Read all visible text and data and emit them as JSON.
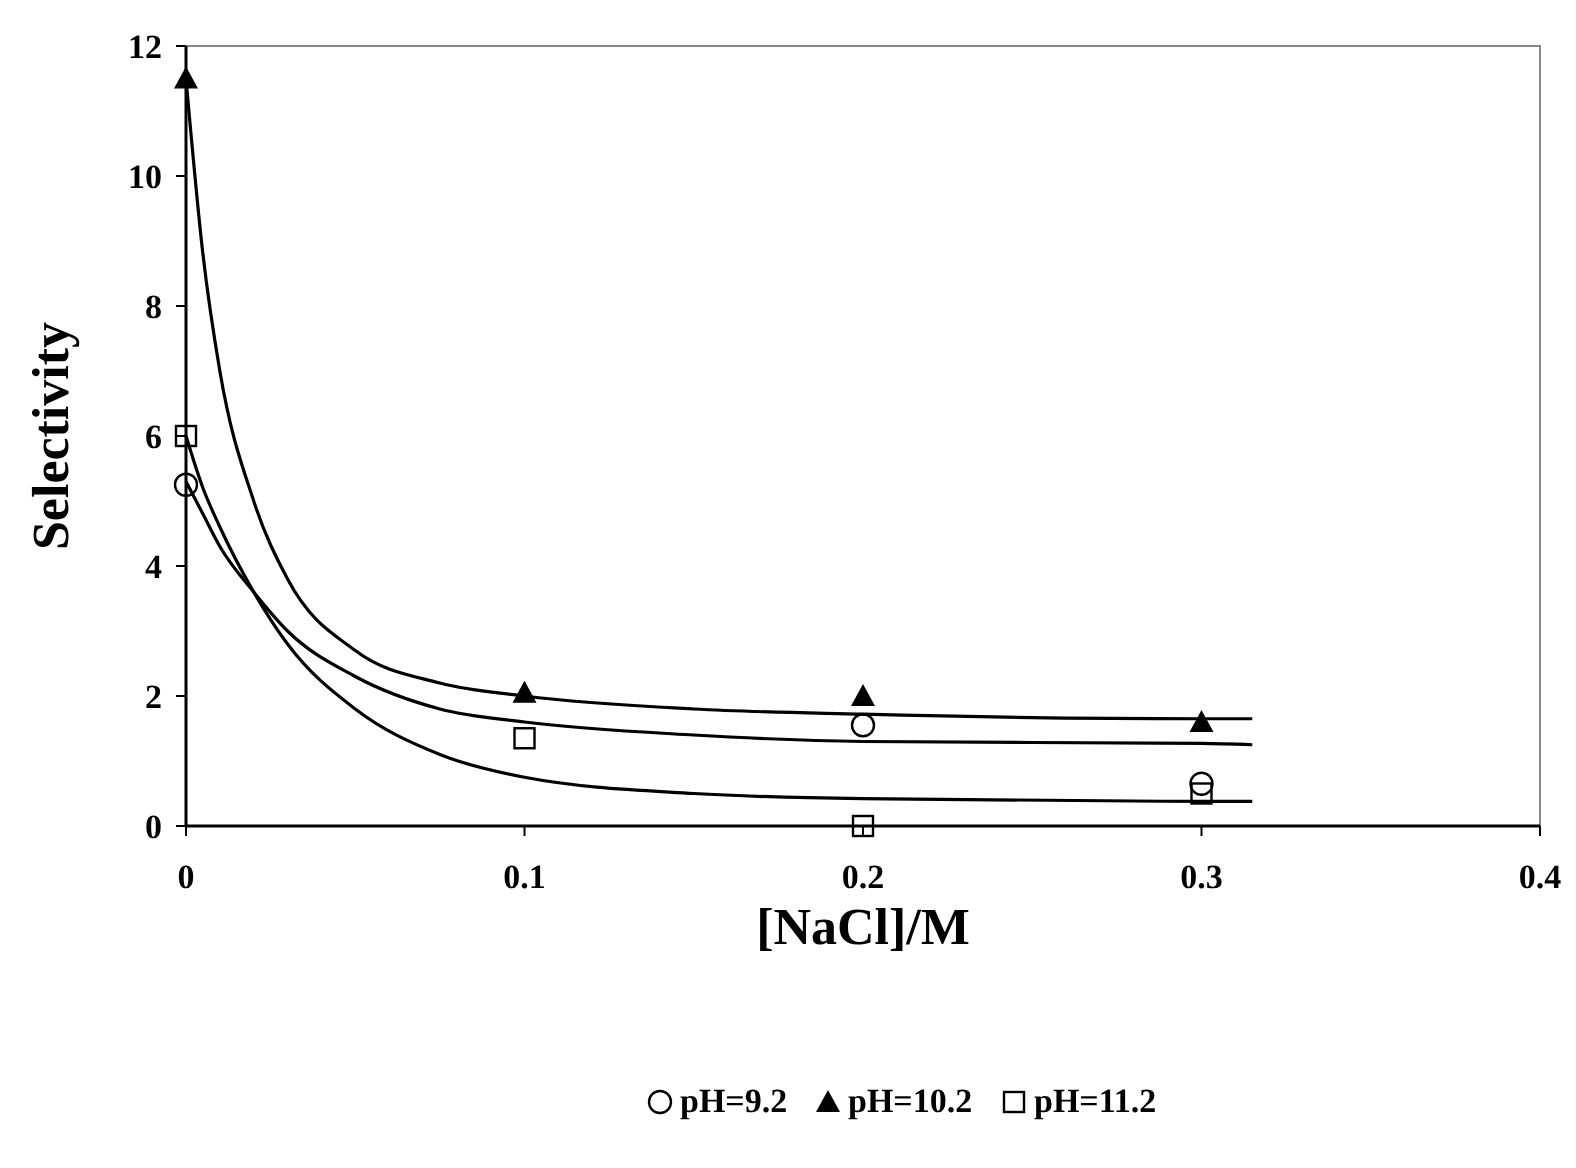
{
  "chart_data": {
    "type": "scatter",
    "xlabel": "[NaCl]/M",
    "ylabel": "Selectivity",
    "xlim": [
      0,
      0.4
    ],
    "xticks": [
      0,
      0.1,
      0.2,
      0.3,
      0.4
    ],
    "ylim": [
      0,
      12
    ],
    "yticks": [
      0,
      2,
      4,
      6,
      8,
      10,
      12
    ],
    "grid": false,
    "legend": "bottom",
    "series": [
      {
        "name": "pH=9.2",
        "marker": "circle",
        "color": "#000000",
        "x": [
          0,
          0.2,
          0.3
        ],
        "values": [
          5.25,
          1.55,
          0.65
        ]
      },
      {
        "name": "pH=10.2",
        "marker": "triangle",
        "color": "#000000",
        "x": [
          0,
          0.1,
          0.2,
          0.3
        ],
        "values": [
          11.5,
          2.05,
          2.0,
          1.6
        ]
      },
      {
        "name": "pH=11.2",
        "marker": "square",
        "color": "#000000",
        "x": [
          0,
          0.1,
          0.2,
          0.3
        ],
        "values": [
          6.0,
          1.35,
          0.0,
          0.5
        ]
      },
      {
        "type": "line",
        "marker": "none",
        "color": "#000000",
        "x": [
          0,
          0.005,
          0.01,
          0.02,
          0.03,
          0.05,
          0.075,
          0.1,
          0.15,
          0.2,
          0.3,
          0.315
        ],
        "values": [
          11.5,
          8.8,
          7.0,
          5.0,
          3.8,
          2.7,
          2.2,
          2.0,
          1.8,
          1.72,
          1.65,
          1.65
        ]
      },
      {
        "type": "line",
        "marker": "none",
        "color": "#000000",
        "x": [
          0,
          0.005,
          0.01,
          0.02,
          0.03,
          0.05,
          0.075,
          0.1,
          0.15,
          0.2,
          0.3,
          0.315
        ],
        "values": [
          5.3,
          4.8,
          4.3,
          3.6,
          3.0,
          2.3,
          1.8,
          1.6,
          1.4,
          1.3,
          1.27,
          1.25
        ]
      },
      {
        "type": "line",
        "marker": "none",
        "color": "#000000",
        "x": [
          0,
          0.005,
          0.01,
          0.02,
          0.03,
          0.05,
          0.075,
          0.1,
          0.15,
          0.2,
          0.3,
          0.315
        ],
        "values": [
          6.0,
          5.2,
          4.6,
          3.6,
          2.8,
          1.8,
          1.1,
          0.75,
          0.5,
          0.42,
          0.38,
          0.38
        ]
      }
    ]
  }
}
